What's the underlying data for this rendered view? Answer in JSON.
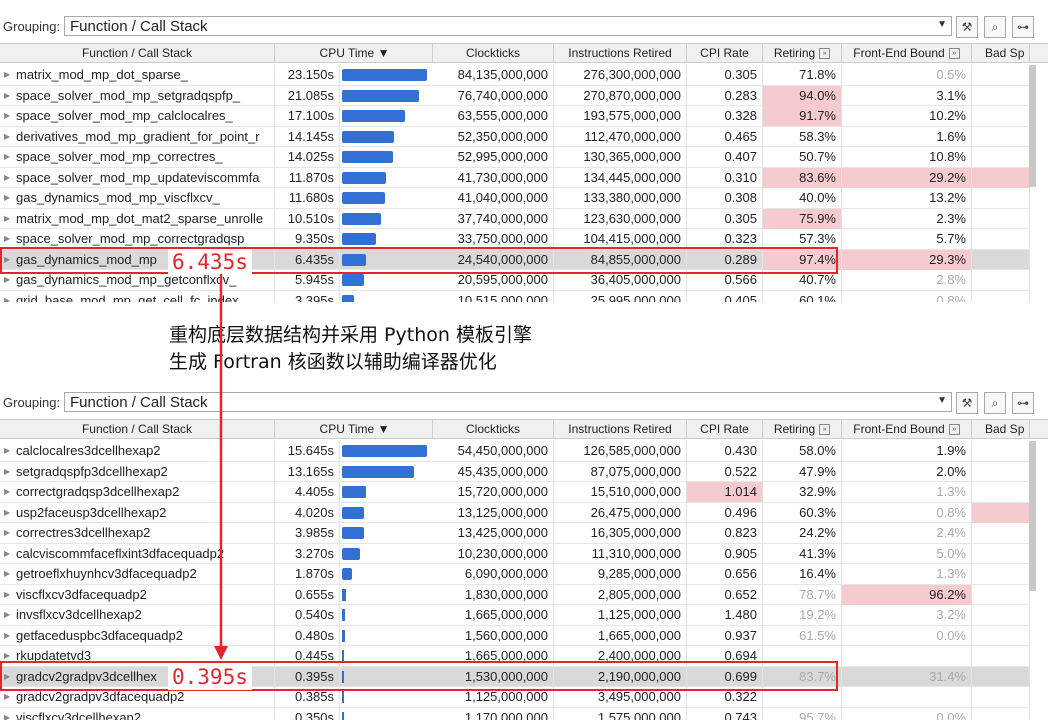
{
  "toolbar": {
    "grouping_label": "Grouping:",
    "grouping_value": "Function / Call Stack"
  },
  "columns": [
    "Function / Call Stack",
    "CPU Time",
    "Clockticks",
    "Instructions Retired",
    "CPI Rate",
    "Retiring",
    "Front-End Bound",
    "Bad Sp"
  ],
  "sort_indicator": "▼",
  "colors": {
    "bar": "#3370d4",
    "highlight": "#f6cbcf",
    "callout": "#e3262c",
    "selected": "#d9d9d9"
  },
  "top_panel": {
    "rows": [
      {
        "fn": "matrix_mod_mp_dot_sparse_",
        "cpu": "23.150s",
        "cpu_value": 23.15,
        "clk": "84,135,000,000",
        "ins": "276,300,000,000",
        "cpi": "0.305",
        "ret": "71.8%",
        "feb": "0.5%",
        "feb_muted": true
      },
      {
        "fn": "space_solver_mod_mp_setgradqspfp_",
        "cpu": "21.085s",
        "cpu_value": 21.085,
        "clk": "76,740,000,000",
        "ins": "270,870,000,000",
        "cpi": "0.283",
        "ret": "94.0%",
        "ret_hot": true,
        "feb": "3.1%"
      },
      {
        "fn": "space_solver_mod_mp_calclocalres_",
        "cpu": "17.100s",
        "cpu_value": 17.1,
        "clk": "63,555,000,000",
        "ins": "193,575,000,000",
        "cpi": "0.328",
        "ret": "91.7%",
        "ret_hot": true,
        "feb": "10.2%"
      },
      {
        "fn": "derivatives_mod_mp_gradient_for_point_r",
        "cpu": "14.145s",
        "cpu_value": 14.145,
        "clk": "52,350,000,000",
        "ins": "112,470,000,000",
        "cpi": "0.465",
        "ret": "58.3%",
        "feb": "1.6%"
      },
      {
        "fn": "space_solver_mod_mp_correctres_",
        "cpu": "14.025s",
        "cpu_value": 14.025,
        "clk": "52,995,000,000",
        "ins": "130,365,000,000",
        "cpi": "0.407",
        "ret": "50.7%",
        "feb": "10.8%"
      },
      {
        "fn": "space_solver_mod_mp_updateviscommfa",
        "cpu": "11.870s",
        "cpu_value": 11.87,
        "clk": "41,730,000,000",
        "ins": "134,445,000,000",
        "cpi": "0.310",
        "ret": "83.6%",
        "ret_hot": true,
        "feb": "29.2%",
        "feb_hot": true,
        "bad_hot": true
      },
      {
        "fn": "gas_dynamics_mod_mp_viscflxcv_",
        "cpu": "11.680s",
        "cpu_value": 11.68,
        "clk": "41,040,000,000",
        "ins": "133,380,000,000",
        "cpi": "0.308",
        "ret": "40.0%",
        "feb": "13.2%"
      },
      {
        "fn": "matrix_mod_mp_dot_mat2_sparse_unrolle",
        "cpu": "10.510s",
        "cpu_value": 10.51,
        "clk": "37,740,000,000",
        "ins": "123,630,000,000",
        "cpi": "0.305",
        "ret": "75.9%",
        "ret_hot": true,
        "feb": "2.3%"
      },
      {
        "fn": "space_solver_mod_mp_correctgradqsp",
        "cpu": "9.350s",
        "cpu_value": 9.35,
        "clk": "33,750,000,000",
        "ins": "104,415,000,000",
        "cpi": "0.323",
        "ret": "57.3%",
        "feb": "5.7%"
      },
      {
        "fn": "gas_dynamics_mod_mp",
        "cpu": "6.435s",
        "cpu_value": 6.435,
        "clk": "24,540,000,000",
        "ins": "84,855,000,000",
        "cpi": "0.289",
        "ret": "97.4%",
        "ret_hot": true,
        "feb": "29.3%",
        "feb_hot": true,
        "selected": true
      },
      {
        "fn": "gas_dynamics_mod_mp_getconflxcv_",
        "cpu": "5.945s",
        "cpu_value": 5.945,
        "clk": "20,595,000,000",
        "ins": "36,405,000,000",
        "cpi": "0.566",
        "ret": "40.7%",
        "feb": "2.8%",
        "feb_muted": true
      },
      {
        "fn": "grid_base_mod_mp_get_cell_fc_index",
        "cpu": "3.395s",
        "cpu_value": 3.395,
        "clk": "10,515,000,000",
        "ins": "25,995,000,000",
        "cpi": "0.405",
        "ret": "60.1%",
        "feb": "0.8%",
        "feb_muted": true
      }
    ],
    "callout_label": "6.435s"
  },
  "note": {
    "line1": "重构底层数据结构并采用 Python 模板引擎",
    "line2": "生成 Fortran 核函数以辅助编译器优化"
  },
  "bottom_panel": {
    "rows": [
      {
        "fn": "calclocalres3dcellhexap2",
        "cpu": "15.645s",
        "cpu_value": 15.645,
        "clk": "54,450,000,000",
        "ins": "126,585,000,000",
        "cpi": "0.430",
        "ret": "58.0%",
        "feb": "1.9%"
      },
      {
        "fn": "setgradqspfp3dcellhexap2",
        "cpu": "13.165s",
        "cpu_value": 13.165,
        "clk": "45,435,000,000",
        "ins": "87,075,000,000",
        "cpi": "0.522",
        "ret": "47.9%",
        "feb": "2.0%"
      },
      {
        "fn": "correctgradqsp3dcellhexap2",
        "cpu": "4.405s",
        "cpu_value": 4.405,
        "clk": "15,720,000,000",
        "ins": "15,510,000,000",
        "cpi": "1.014",
        "cpi_hot": true,
        "ret": "32.9%",
        "feb": "1.3%",
        "feb_muted": true
      },
      {
        "fn": "usp2faceusp3dcellhexap2",
        "cpu": "4.020s",
        "cpu_value": 4.02,
        "clk": "13,125,000,000",
        "ins": "26,475,000,000",
        "cpi": "0.496",
        "ret": "60.3%",
        "feb": "0.8%",
        "feb_muted": true,
        "bad_hot": true
      },
      {
        "fn": "correctres3dcellhexap2",
        "cpu": "3.985s",
        "cpu_value": 3.985,
        "clk": "13,425,000,000",
        "ins": "16,305,000,000",
        "cpi": "0.823",
        "ret": "24.2%",
        "feb": "2.4%",
        "feb_muted": true
      },
      {
        "fn": "calcviscommfaceflxint3dfacequadp2",
        "cpu": "3.270s",
        "cpu_value": 3.27,
        "clk": "10,230,000,000",
        "ins": "11,310,000,000",
        "cpi": "0.905",
        "ret": "41.3%",
        "feb": "5.0%",
        "feb_muted": true
      },
      {
        "fn": "getroeflxhuynhcv3dfacequadp2",
        "cpu": "1.870s",
        "cpu_value": 1.87,
        "clk": "6,090,000,000",
        "ins": "9,285,000,000",
        "cpi": "0.656",
        "ret": "16.4%",
        "feb": "1.3%",
        "feb_muted": true
      },
      {
        "fn": "viscflxcv3dfacequadp2",
        "cpu": "0.655s",
        "cpu_value": 0.655,
        "clk": "1,830,000,000",
        "ins": "2,805,000,000",
        "cpi": "0.652",
        "ret": "78.7%",
        "ret_muted": true,
        "feb": "96.2%",
        "feb_hot": true
      },
      {
        "fn": "invsflxcv3dcellhexap2",
        "cpu": "0.540s",
        "cpu_value": 0.54,
        "clk": "1,665,000,000",
        "ins": "1,125,000,000",
        "cpi": "1.480",
        "ret": "19.2%",
        "ret_muted": true,
        "feb": "3.2%",
        "feb_muted": true
      },
      {
        "fn": "getfaceduspbc3dfacequadp2",
        "cpu": "0.480s",
        "cpu_value": 0.48,
        "clk": "1,560,000,000",
        "ins": "1,665,000,000",
        "cpi": "0.937",
        "ret": "61.5%",
        "ret_muted": true,
        "feb": "0.0%",
        "feb_muted": true
      },
      {
        "fn": "rkupdatetvd3",
        "cpu": "0.445s",
        "cpu_value": 0.445,
        "clk": "1,665,000,000",
        "ins": "2,400,000,000",
        "cpi": "0.694",
        "ret": "",
        "feb": ""
      },
      {
        "fn": "gradcv2gradpv3dcellhex",
        "cpu": "0.395s",
        "cpu_value": 0.395,
        "clk": "1,530,000,000",
        "ins": "2,190,000,000",
        "cpi": "0.699",
        "ret": "83.7%",
        "ret_muted": true,
        "feb": "31.4%",
        "feb_muted": true,
        "selected": true
      },
      {
        "fn": "gradcv2gradpv3dfacequadp2",
        "cpu": "0.385s",
        "cpu_value": 0.385,
        "clk": "1,125,000,000",
        "ins": "3,495,000,000",
        "cpi": "0.322",
        "ret": "",
        "feb": ""
      },
      {
        "fn": "viscflxcv3dcellhexap2",
        "cpu": "0.350s",
        "cpu_value": 0.35,
        "clk": "1,170,000,000",
        "ins": "1,575,000,000",
        "cpi": "0.743",
        "ret": "95.7%",
        "ret_muted": true,
        "feb": "0.0%",
        "feb_muted": true
      }
    ],
    "callout_label": "0.395s"
  }
}
